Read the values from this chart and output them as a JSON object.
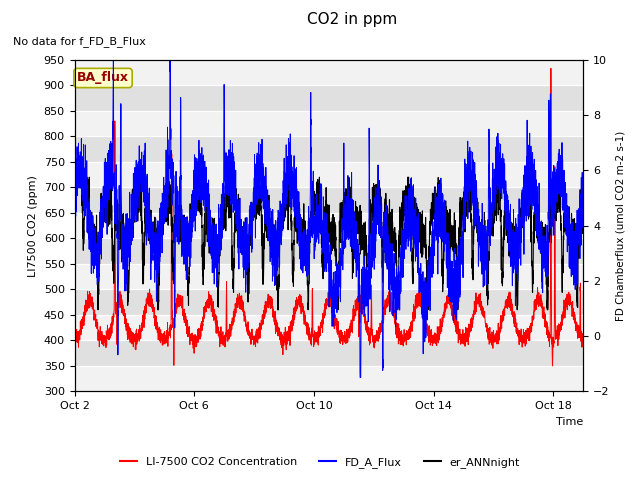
{
  "title": "CO2 in ppm",
  "no_data_text": "No data for f_FD_B_Flux",
  "xlabel": "Time",
  "ylabel_left": "LI7500 CO2 (ppm)",
  "ylabel_right": "FD Chamberflux (umol CO2 m-2 s-1)",
  "ylim_left": [
    300,
    950
  ],
  "ylim_right": [
    -2,
    10
  ],
  "yticks_left": [
    300,
    350,
    400,
    450,
    500,
    550,
    600,
    650,
    700,
    750,
    800,
    850,
    900,
    950
  ],
  "yticks_right": [
    -2,
    0,
    2,
    4,
    6,
    8,
    10
  ],
  "xtick_labels": [
    "Oct 2",
    "Oct 6",
    "Oct 10",
    "Oct 14",
    "Oct 18"
  ],
  "xtick_positions": [
    0,
    4,
    8,
    12,
    16
  ],
  "ba_flux_label": "BA_flux",
  "legend_labels": [
    "LI-7500 CO2 Concentration",
    "FD_A_Flux",
    "er_ANNnight"
  ],
  "legend_colors": [
    "red",
    "blue",
    "black"
  ],
  "line_colors": {
    "co2": "red",
    "fd_a": "blue",
    "er_ann": "black"
  },
  "background_color": "#e0e0e0",
  "ba_flux_bg": "#ffffcc",
  "ba_flux_text": "#990000",
  "n_points": 4000,
  "n_days": 17
}
